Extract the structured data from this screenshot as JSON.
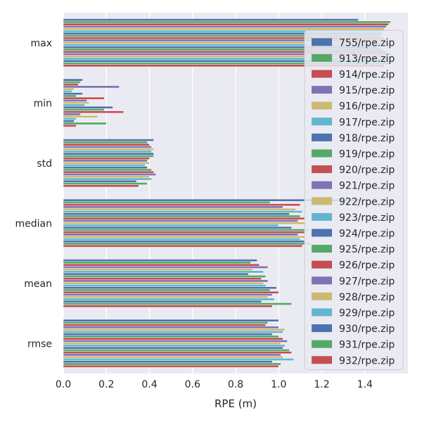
{
  "chart_data": {
    "type": "bar",
    "orientation": "horizontal",
    "title": "",
    "xlabel": "RPE (m)",
    "ylabel": "",
    "xlim": [
      0,
      1.6
    ],
    "x_ticks": [
      "0.0",
      "0.2",
      "0.4",
      "0.6",
      "0.8",
      "1.0",
      "1.2",
      "1.4"
    ],
    "grid": true,
    "legend_position": "upper-right",
    "categories": [
      "max",
      "min",
      "std",
      "median",
      "mean",
      "rmse"
    ],
    "series": [
      {
        "name": "755/rpe.zip",
        "color": "#4c72b0",
        "values": [
          1.37,
          0.09,
          0.42,
          1.38,
          0.9,
          1.0
        ]
      },
      {
        "name": "913/rpe.zip",
        "color": "#55a868",
        "values": [
          1.52,
          0.08,
          0.39,
          0.96,
          0.87,
          0.95
        ]
      },
      {
        "name": "914/rpe.zip",
        "color": "#c44e52",
        "values": [
          1.51,
          0.07,
          0.4,
          1.1,
          0.91,
          0.94
        ]
      },
      {
        "name": "915/rpe.zip",
        "color": "#8172b2",
        "values": [
          1.5,
          0.26,
          0.41,
          1.02,
          0.95,
          1.0
        ]
      },
      {
        "name": "916/rpe.zip",
        "color": "#ccb974",
        "values": [
          1.49,
          0.05,
          0.42,
          1.08,
          0.88,
          1.03
        ]
      },
      {
        "name": "917/rpe.zip",
        "color": "#64b5cd",
        "values": [
          1.48,
          0.04,
          0.41,
          1.11,
          0.93,
          1.02
        ]
      },
      {
        "name": "918/rpe.zip",
        "color": "#4c72b0",
        "values": [
          1.48,
          0.09,
          0.42,
          1.05,
          0.86,
          0.97
        ]
      },
      {
        "name": "919/rpe.zip",
        "color": "#55a868",
        "values": [
          1.47,
          0.06,
          0.42,
          1.1,
          0.94,
          1.0
        ]
      },
      {
        "name": "920/rpe.zip",
        "color": "#c44e52",
        "values": [
          1.49,
          0.19,
          0.4,
          1.12,
          0.92,
          1.02
        ]
      },
      {
        "name": "921/rpe.zip",
        "color": "#8172b2",
        "values": [
          1.5,
          0.11,
          0.39,
          1.09,
          0.95,
          1.04
        ]
      },
      {
        "name": "922/rpe.zip",
        "color": "#ccb974",
        "values": [
          1.5,
          0.12,
          0.4,
          1.13,
          0.93,
          1.01
        ]
      },
      {
        "name": "923/rpe.zip",
        "color": "#64b5cd",
        "values": [
          1.51,
          0.1,
          0.38,
          1.0,
          0.94,
          1.03
        ]
      },
      {
        "name": "924/rpe.zip",
        "color": "#4c72b0",
        "values": [
          1.46,
          0.23,
          0.39,
          1.06,
          0.99,
          1.02
        ]
      },
      {
        "name": "925/rpe.zip",
        "color": "#55a868",
        "values": [
          1.48,
          0.19,
          0.41,
          1.14,
          0.96,
          1.05
        ]
      },
      {
        "name": "926/rpe.zip",
        "color": "#c44e52",
        "values": [
          1.5,
          0.28,
          0.42,
          1.12,
          1.0,
          1.06
        ]
      },
      {
        "name": "927/rpe.zip",
        "color": "#8172b2",
        "values": [
          1.52,
          0.08,
          0.43,
          1.09,
          0.97,
          1.01
        ]
      },
      {
        "name": "928/rpe.zip",
        "color": "#ccb974",
        "values": [
          1.49,
          0.16,
          0.4,
          1.13,
          0.95,
          1.02
        ]
      },
      {
        "name": "929/rpe.zip",
        "color": "#64b5cd",
        "values": [
          1.51,
          0.06,
          0.41,
          1.1,
          0.98,
          1.07
        ]
      },
      {
        "name": "930/rpe.zip",
        "color": "#4c72b0",
        "values": [
          1.5,
          0.05,
          0.34,
          1.12,
          0.92,
          0.97
        ]
      },
      {
        "name": "931/rpe.zip",
        "color": "#55a868",
        "values": [
          1.52,
          0.2,
          0.39,
          1.15,
          1.06,
          1.01
        ]
      },
      {
        "name": "932/rpe.zip",
        "color": "#c44e52",
        "values": [
          1.49,
          0.06,
          0.35,
          1.11,
          0.97,
          1.0
        ]
      }
    ]
  }
}
